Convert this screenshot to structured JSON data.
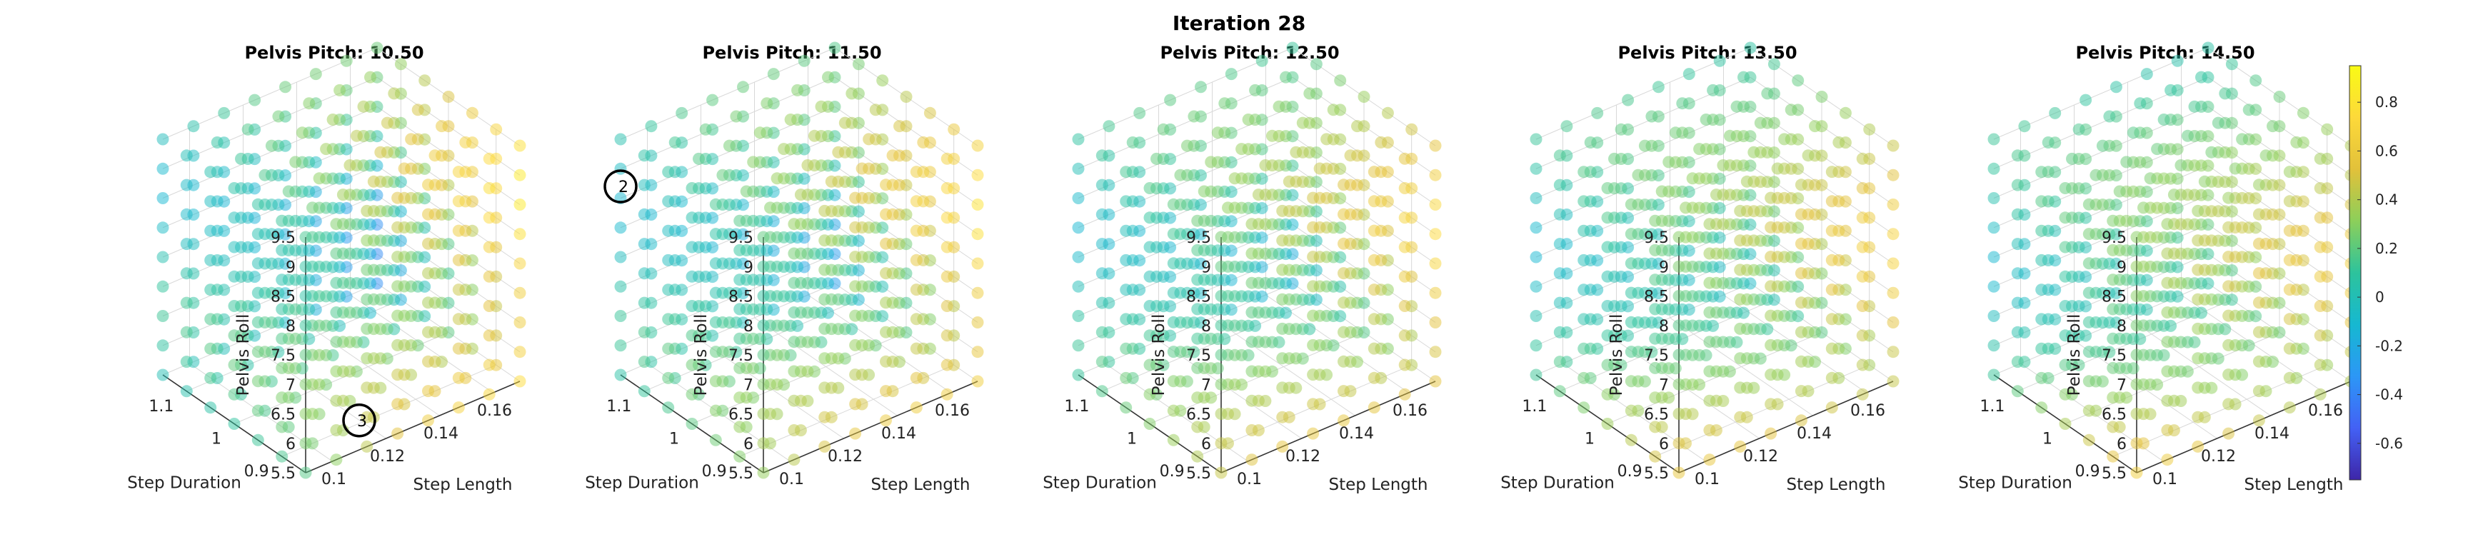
{
  "chart_data": {
    "type": "scatter",
    "title": "Iteration 28",
    "subplots": [
      {
        "title": "Pelvis Pitch: 10.50",
        "pitch": 10.5
      },
      {
        "title": "Pelvis Pitch: 11.50",
        "pitch": 11.5
      },
      {
        "title": "Pelvis Pitch: 12.50",
        "pitch": 12.5
      },
      {
        "title": "Pelvis Pitch: 13.50",
        "pitch": 13.5
      },
      {
        "title": "Pelvis Pitch: 14.50",
        "pitch": 14.5
      }
    ],
    "axes": {
      "x": {
        "label": "Step Length",
        "ticks": [
          "0.1",
          "0.12",
          "0.14",
          "0.16"
        ],
        "range": [
          0.09,
          0.17
        ]
      },
      "y": {
        "label": "Step Duration",
        "ticks": [
          "0.9",
          "1",
          "1.1"
        ],
        "range": [
          0.85,
          1.15
        ]
      },
      "z": {
        "label": "Pelvis Roll",
        "ticks": [
          "5.5",
          "6",
          "6.5",
          "7",
          "7.5",
          "8",
          "8.5",
          "9",
          "9.5"
        ],
        "range": [
          5.5,
          9.5
        ]
      }
    },
    "grid": true,
    "colorbar": {
      "ticks": [
        "0.8",
        "0.6",
        "0.4",
        "0.2",
        "0",
        "-0.2",
        "-0.4",
        "-0.6"
      ],
      "range": [
        -0.75,
        0.95
      ],
      "colormap": [
        "#3e26a8",
        "#4361f5",
        "#2c97f6",
        "#16b8d1",
        "#2dc39c",
        "#8ccf5a",
        "#e2c13a",
        "#fdd93a",
        "#f9fb15"
      ]
    },
    "marked_points": [
      {
        "label": "3",
        "subplot": 0,
        "step_length": 0.11,
        "step_duration": 0.85,
        "pelvis_roll": 6.0
      },
      {
        "label": "2",
        "subplot": 1,
        "step_length": 0.09,
        "step_duration": 1.15,
        "pelvis_roll": 8.7
      }
    ]
  }
}
